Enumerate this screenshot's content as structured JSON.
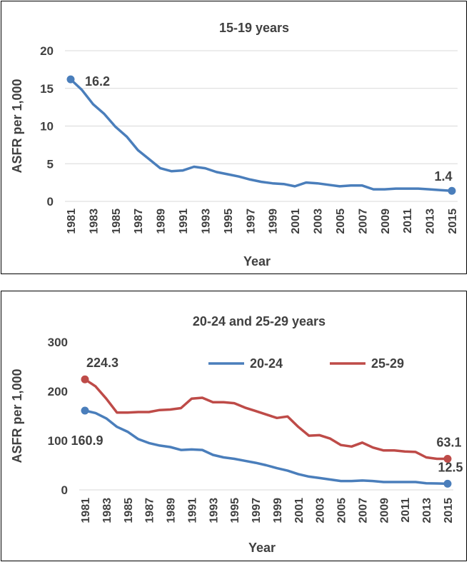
{
  "chart_data": [
    {
      "type": "line",
      "title": "15-19 years",
      "xlabel": "Year",
      "ylabel": "ASFR per 1,000",
      "ylim": [
        0,
        20
      ],
      "yticks": [
        "0",
        "5",
        "10",
        "15",
        "20"
      ],
      "grid": true,
      "x": [
        1981,
        1982,
        1983,
        1984,
        1985,
        1986,
        1987,
        1988,
        1989,
        1990,
        1991,
        1992,
        1993,
        1994,
        1995,
        1996,
        1997,
        1998,
        1999,
        2000,
        2001,
        2002,
        2003,
        2004,
        2005,
        2006,
        2007,
        2008,
        2009,
        2010,
        2011,
        2012,
        2013,
        2014,
        2015
      ],
      "xtick_labels": [
        "1981",
        "1983",
        "1985",
        "1987",
        "1989",
        "1991",
        "1993",
        "1995",
        "1997",
        "1999",
        "2001",
        "2003",
        "2005",
        "2007",
        "2009",
        "2011",
        "2013",
        "2015"
      ],
      "series": [
        {
          "name": "15-19",
          "color": "#4a7ebb",
          "values": [
            16.2,
            14.8,
            12.9,
            11.6,
            9.9,
            8.6,
            6.8,
            5.6,
            4.4,
            4.0,
            4.1,
            4.6,
            4.4,
            3.9,
            3.6,
            3.3,
            2.9,
            2.6,
            2.4,
            2.3,
            2.0,
            2.5,
            2.4,
            2.2,
            2.0,
            2.1,
            2.1,
            1.6,
            1.6,
            1.7,
            1.7,
            1.7,
            1.6,
            1.5,
            1.4
          ],
          "annotations": [
            {
              "index": 0,
              "label": "16.2"
            },
            {
              "index": 34,
              "label": "1.4"
            }
          ]
        }
      ]
    },
    {
      "type": "line",
      "title": "20-24 and 25-29 years",
      "xlabel": "Year",
      "ylabel": "ASFR per 1,000",
      "ylim": [
        0,
        300
      ],
      "yticks": [
        "0",
        "100",
        "200",
        "300"
      ],
      "grid": false,
      "legend_position": "top-right",
      "x": [
        1981,
        1982,
        1983,
        1984,
        1985,
        1986,
        1987,
        1988,
        1989,
        1990,
        1991,
        1992,
        1993,
        1994,
        1995,
        1996,
        1997,
        1998,
        1999,
        2000,
        2001,
        2002,
        2003,
        2004,
        2005,
        2006,
        2007,
        2008,
        2009,
        2010,
        2011,
        2012,
        2013,
        2014,
        2015
      ],
      "xtick_labels": [
        "1981",
        "1983",
        "1985",
        "1987",
        "1989",
        "1991",
        "1993",
        "1995",
        "1997",
        "1999",
        "2001",
        "2003",
        "2005",
        "2007",
        "2009",
        "2011",
        "2013",
        "2015"
      ],
      "series": [
        {
          "name": "20-24",
          "color": "#4a7ebb",
          "values": [
            160.9,
            156.0,
            145.0,
            128.0,
            118.0,
            103.0,
            95.0,
            90.0,
            87.0,
            81.0,
            82.0,
            81.0,
            71.0,
            66.0,
            63.0,
            59.0,
            55.0,
            50.0,
            44.0,
            39.0,
            32.0,
            27.0,
            24.0,
            21.0,
            18.0,
            18.0,
            19.0,
            18.0,
            16.0,
            16.0,
            16.0,
            16.0,
            13.5,
            13.0,
            12.5
          ],
          "annotations": [
            {
              "index": 0,
              "label": "160.9"
            },
            {
              "index": 34,
              "label": "12.5"
            }
          ]
        },
        {
          "name": "25-29",
          "color": "#be4b48",
          "values": [
            224.3,
            210.0,
            185.0,
            157.0,
            157.0,
            158.0,
            158.0,
            162.0,
            163.0,
            166.0,
            185.0,
            187.0,
            178.0,
            178.0,
            176.0,
            167.0,
            160.0,
            153.0,
            146.0,
            149.0,
            128.0,
            110.0,
            111.0,
            104.0,
            91.0,
            88.0,
            96.0,
            86.0,
            80.0,
            80.0,
            78.0,
            77.0,
            66.0,
            63.0,
            63.1
          ],
          "annotations": [
            {
              "index": 0,
              "label": "224.3"
            },
            {
              "index": 34,
              "label": "63.1"
            }
          ]
        }
      ]
    }
  ]
}
